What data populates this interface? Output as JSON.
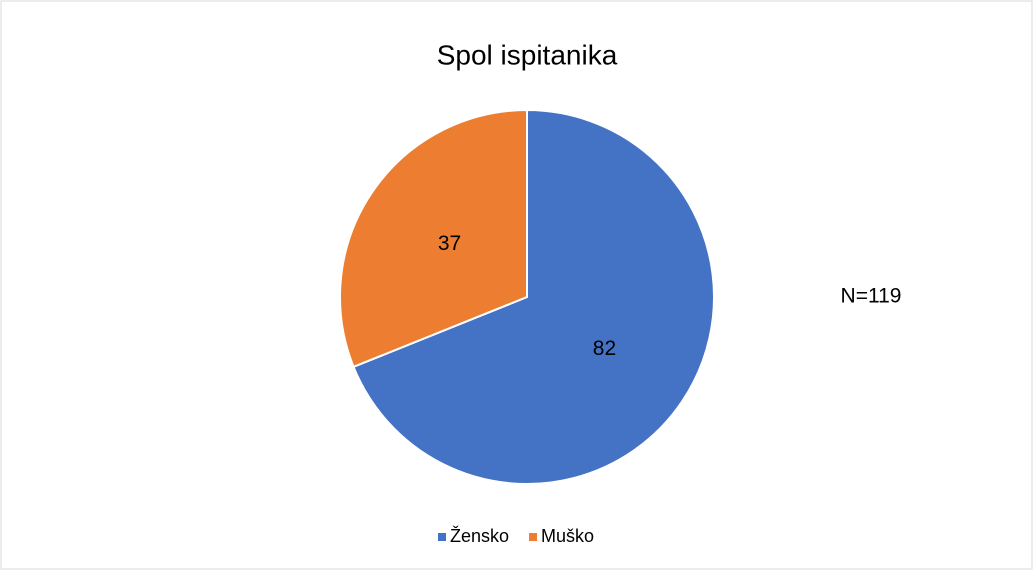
{
  "chart_data": {
    "type": "pie",
    "title": "Spol ispitanika",
    "categories": [
      "Žensko",
      "Muško"
    ],
    "values": [
      82,
      37
    ],
    "colors": [
      "#4472c4",
      "#ed7d31"
    ],
    "annotation": "N=119",
    "legend": "bottom"
  }
}
